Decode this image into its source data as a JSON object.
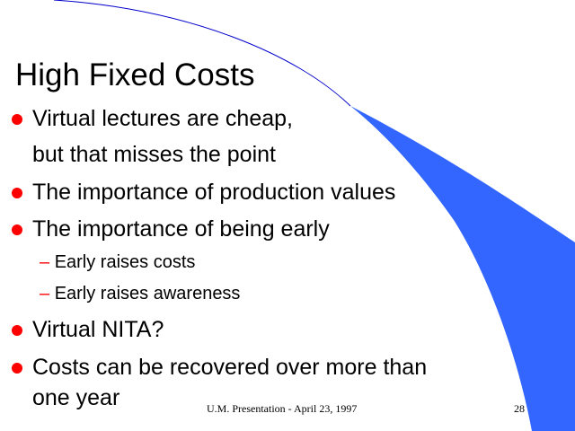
{
  "slide": {
    "title": "High Fixed Costs",
    "bullets": [
      "Virtual lectures are cheap,",
      "but that misses the point",
      "The importance of production values",
      "The importance of being early",
      "Virtual NITA?",
      "Costs can be recovered over more than",
      "one year"
    ],
    "sub_bullets": [
      "Early raises costs",
      "Early raises awareness"
    ],
    "footer": "U.M. Presentation - April 23, 1997",
    "page_number": "28"
  },
  "colors": {
    "bullet": "#ff0000",
    "swoosh": "#3366ff",
    "swoosh_line": "#0000cc"
  }
}
